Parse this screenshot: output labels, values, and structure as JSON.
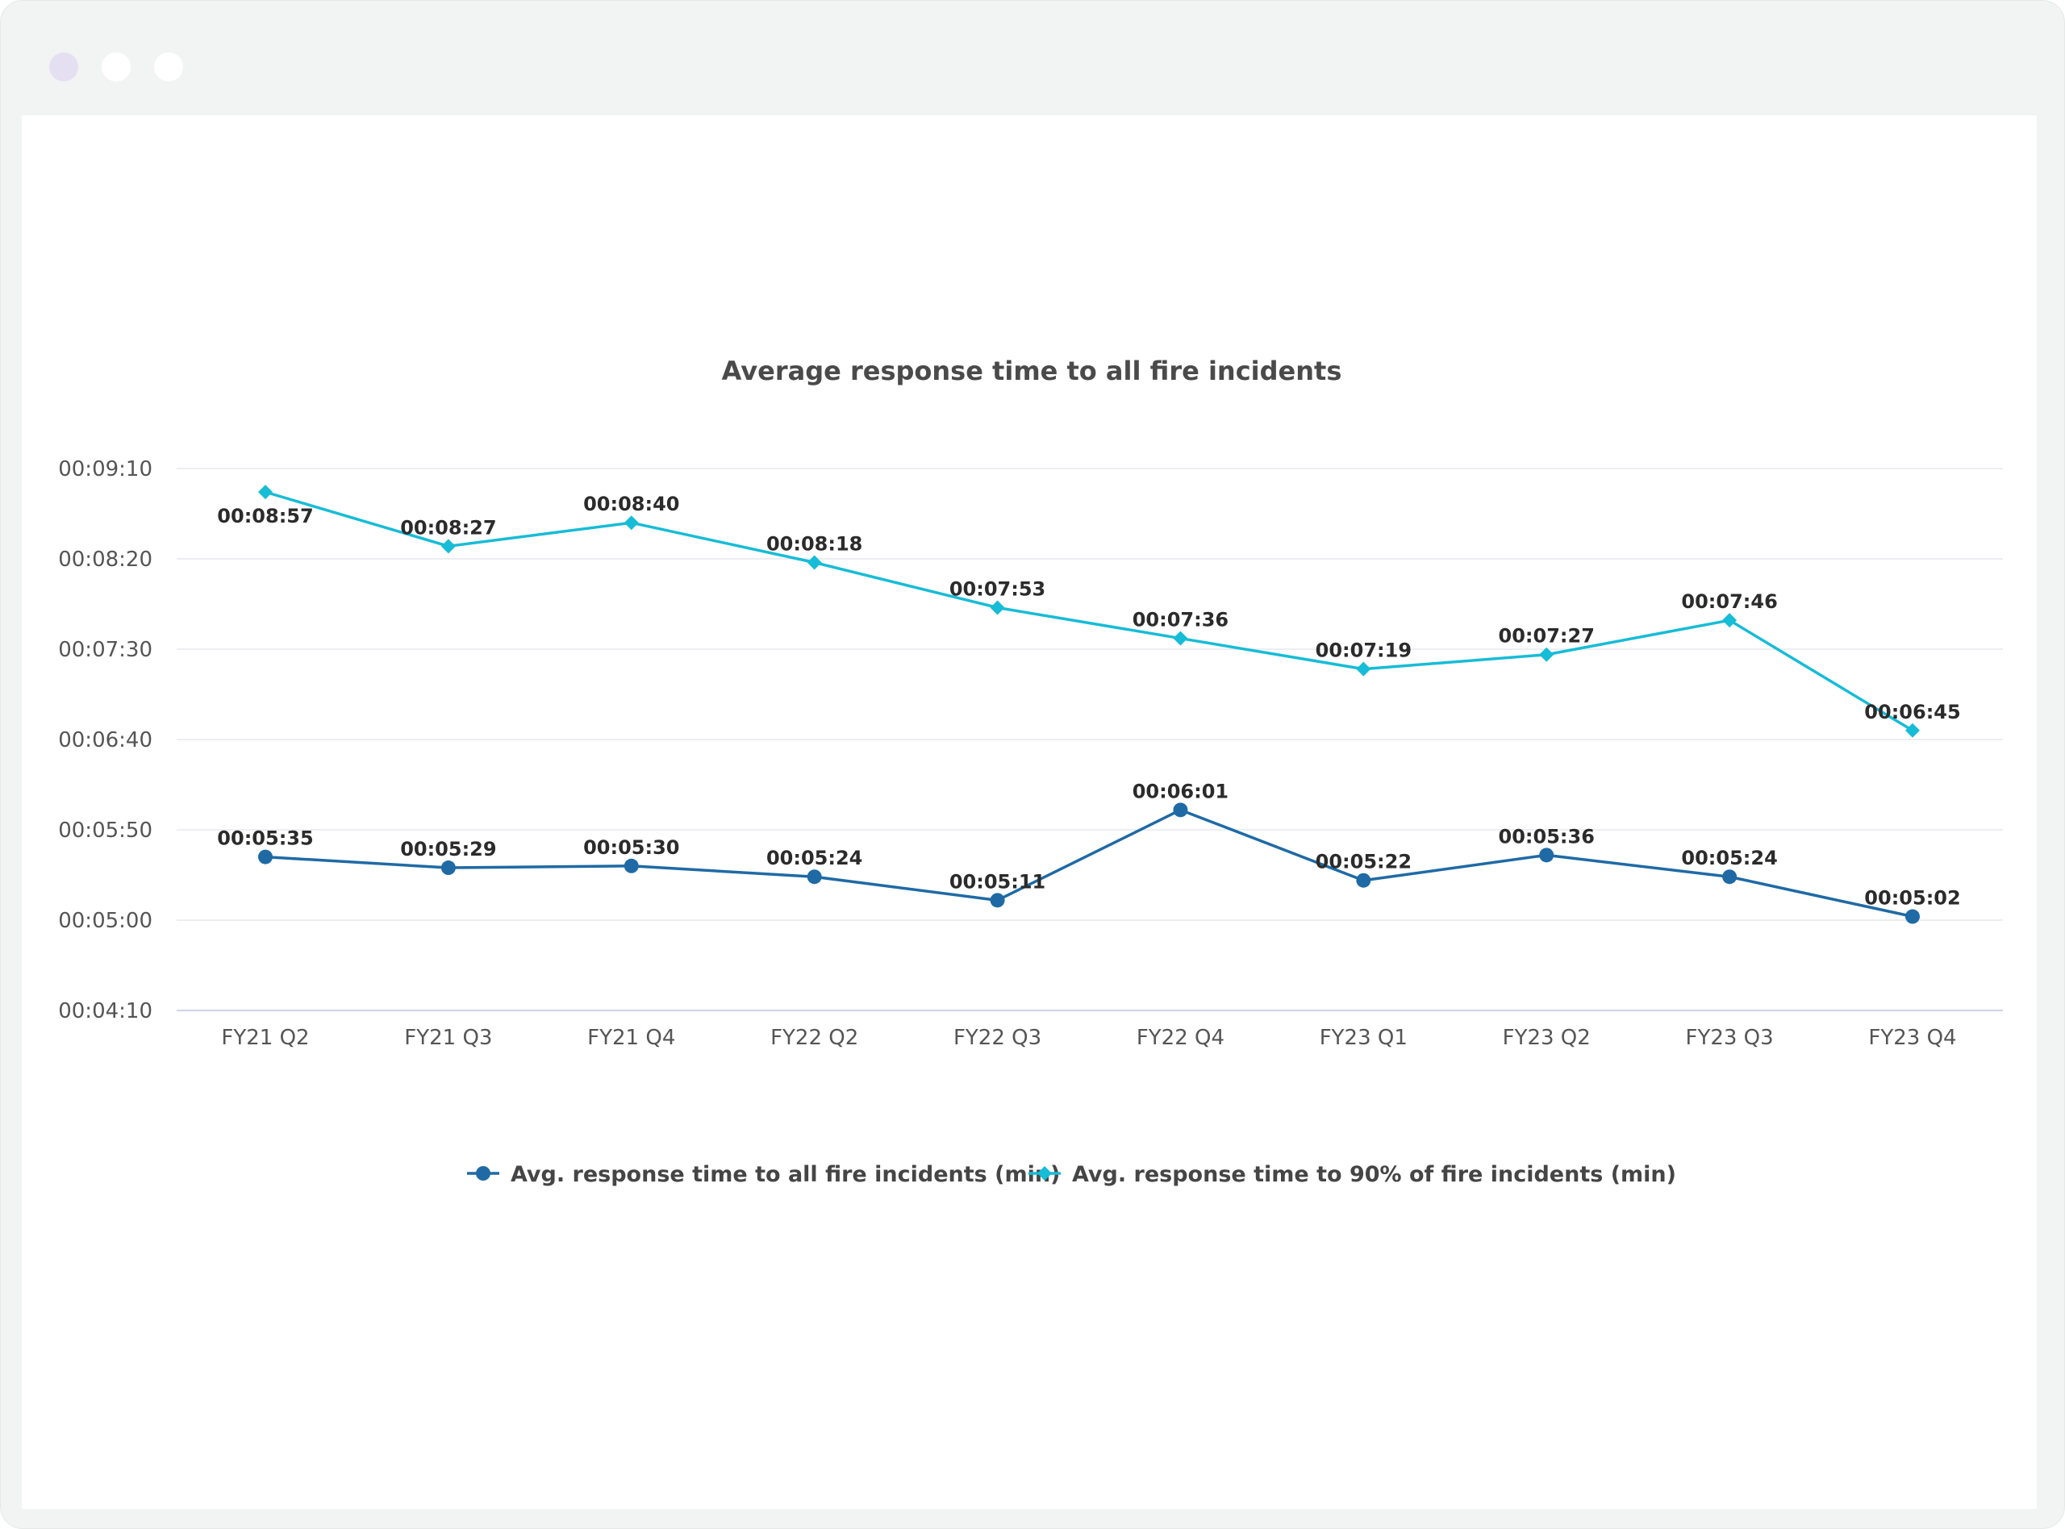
{
  "chart_data": {
    "type": "line",
    "title": "Average response time to all fire incidents",
    "xlabel": "",
    "ylabel": "",
    "categories": [
      "FY21 Q2",
      "FY21 Q3",
      "FY21 Q4",
      "FY22 Q2",
      "FY22 Q3",
      "FY22 Q4",
      "FY23 Q1",
      "FY23 Q2",
      "FY23 Q3",
      "FY23 Q4"
    ],
    "y_ticks": [
      "00:04:10",
      "00:05:00",
      "00:05:50",
      "00:06:40",
      "00:07:30",
      "00:08:20",
      "00:09:10"
    ],
    "y_tick_seconds": [
      250,
      300,
      350,
      400,
      450,
      500,
      550
    ],
    "ylim": [
      250,
      550
    ],
    "grid": true,
    "legend_position": "bottom",
    "series": [
      {
        "name": "Avg. response time to all fire incidents (min)",
        "color": "#1f6aa5",
        "marker": "circle",
        "values": [
          335,
          329,
          330,
          324,
          311,
          361,
          322,
          336,
          324,
          302
        ],
        "labels": [
          "00:05:35",
          "00:05:29",
          "00:05:30",
          "00:05:24",
          "00:05:11",
          "00:06:01",
          "00:05:22",
          "00:05:36",
          "00:05:24",
          "00:05:02"
        ]
      },
      {
        "name": "Avg. response time to 90% of fire incidents (min)",
        "color": "#17bcd6",
        "marker": "diamond",
        "values": [
          537,
          507,
          520,
          498,
          473,
          456,
          439,
          447,
          466,
          405
        ],
        "labels": [
          "00:08:57",
          "00:08:27",
          "00:08:40",
          "00:08:18",
          "00:07:53",
          "00:07:36",
          "00:07:19",
          "00:07:27",
          "00:07:46",
          "00:06:45"
        ]
      }
    ]
  }
}
